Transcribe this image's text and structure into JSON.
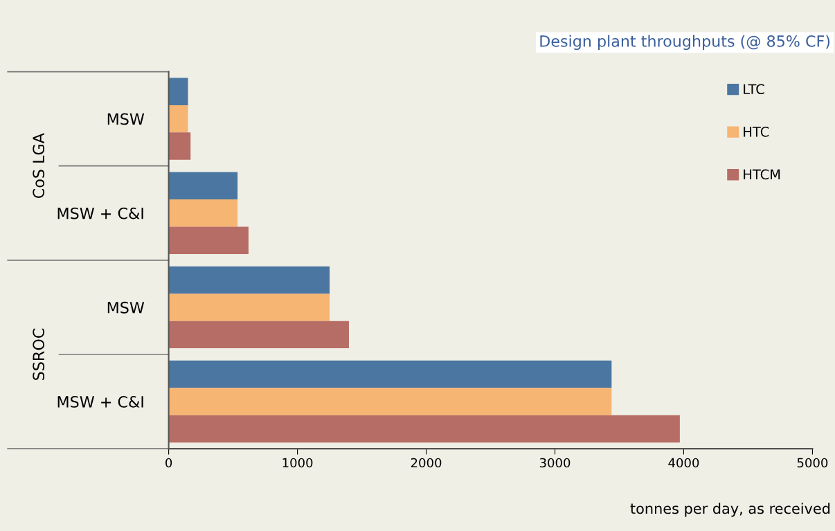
{
  "chart_data": {
    "type": "bar",
    "orientation": "horizontal",
    "title": "Design plant throughputs (@ 85% CF)",
    "xlabel": "tonnes per day, as received",
    "categories": [
      "MSW",
      "MSW + C&I",
      "MSW",
      "MSW + C&I"
    ],
    "annotations": [
      "CoS LGA",
      "SSROC"
    ],
    "series": [
      {
        "name": "LTC",
        "color": "#4a76a1",
        "values": [
          150,
          535,
          1250,
          3440
        ]
      },
      {
        "name": "HTC",
        "color": "#f6b573",
        "values": [
          150,
          535,
          1250,
          3440
        ]
      },
      {
        "name": "HTCM",
        "color": "#b66d65",
        "values": [
          170,
          620,
          1400,
          3970
        ]
      }
    ],
    "xlim": [
      0,
      5000
    ],
    "xticks": [
      0,
      1000,
      2000,
      3000,
      4000,
      5000
    ],
    "grid": false,
    "legend": "top right"
  }
}
